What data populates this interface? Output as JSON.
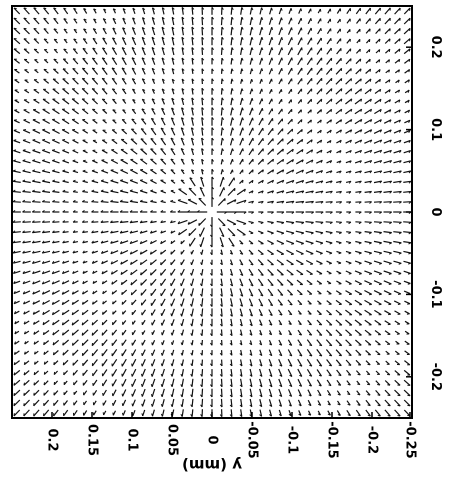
{
  "chart_data": {
    "type": "quiver",
    "orientation": "rotated-90-clockwise",
    "xlabel": "",
    "ylabel": "y (mm)",
    "x_axis": {
      "ticks": [
        -0.2,
        -0.1,
        0,
        0.1,
        0.2
      ],
      "tick_labels": [
        "-0.2",
        "-0.1",
        "0",
        "0.1",
        "0.2"
      ],
      "range": [
        -0.25,
        0.25
      ],
      "placement": "right"
    },
    "y_axis": {
      "ticks": [
        0.2,
        0.15,
        0.1,
        0.05,
        0,
        -0.05,
        -0.1,
        -0.15,
        -0.2,
        -0.25
      ],
      "tick_labels": [
        "0.2",
        "0.15",
        "0.1",
        "0.05",
        "0",
        "-0.05",
        "-0.1",
        "-0.15",
        "-0.2",
        "-0.25"
      ],
      "range": [
        -0.25,
        0.25
      ],
      "placement": "bottom"
    },
    "grid": false,
    "field": {
      "description": "vector field radiating from origin, magnitude peaking near center with concentric ring modulation",
      "center": [
        0,
        0
      ],
      "grid_points_per_axis": 41,
      "arrow_color": "#111111"
    }
  }
}
